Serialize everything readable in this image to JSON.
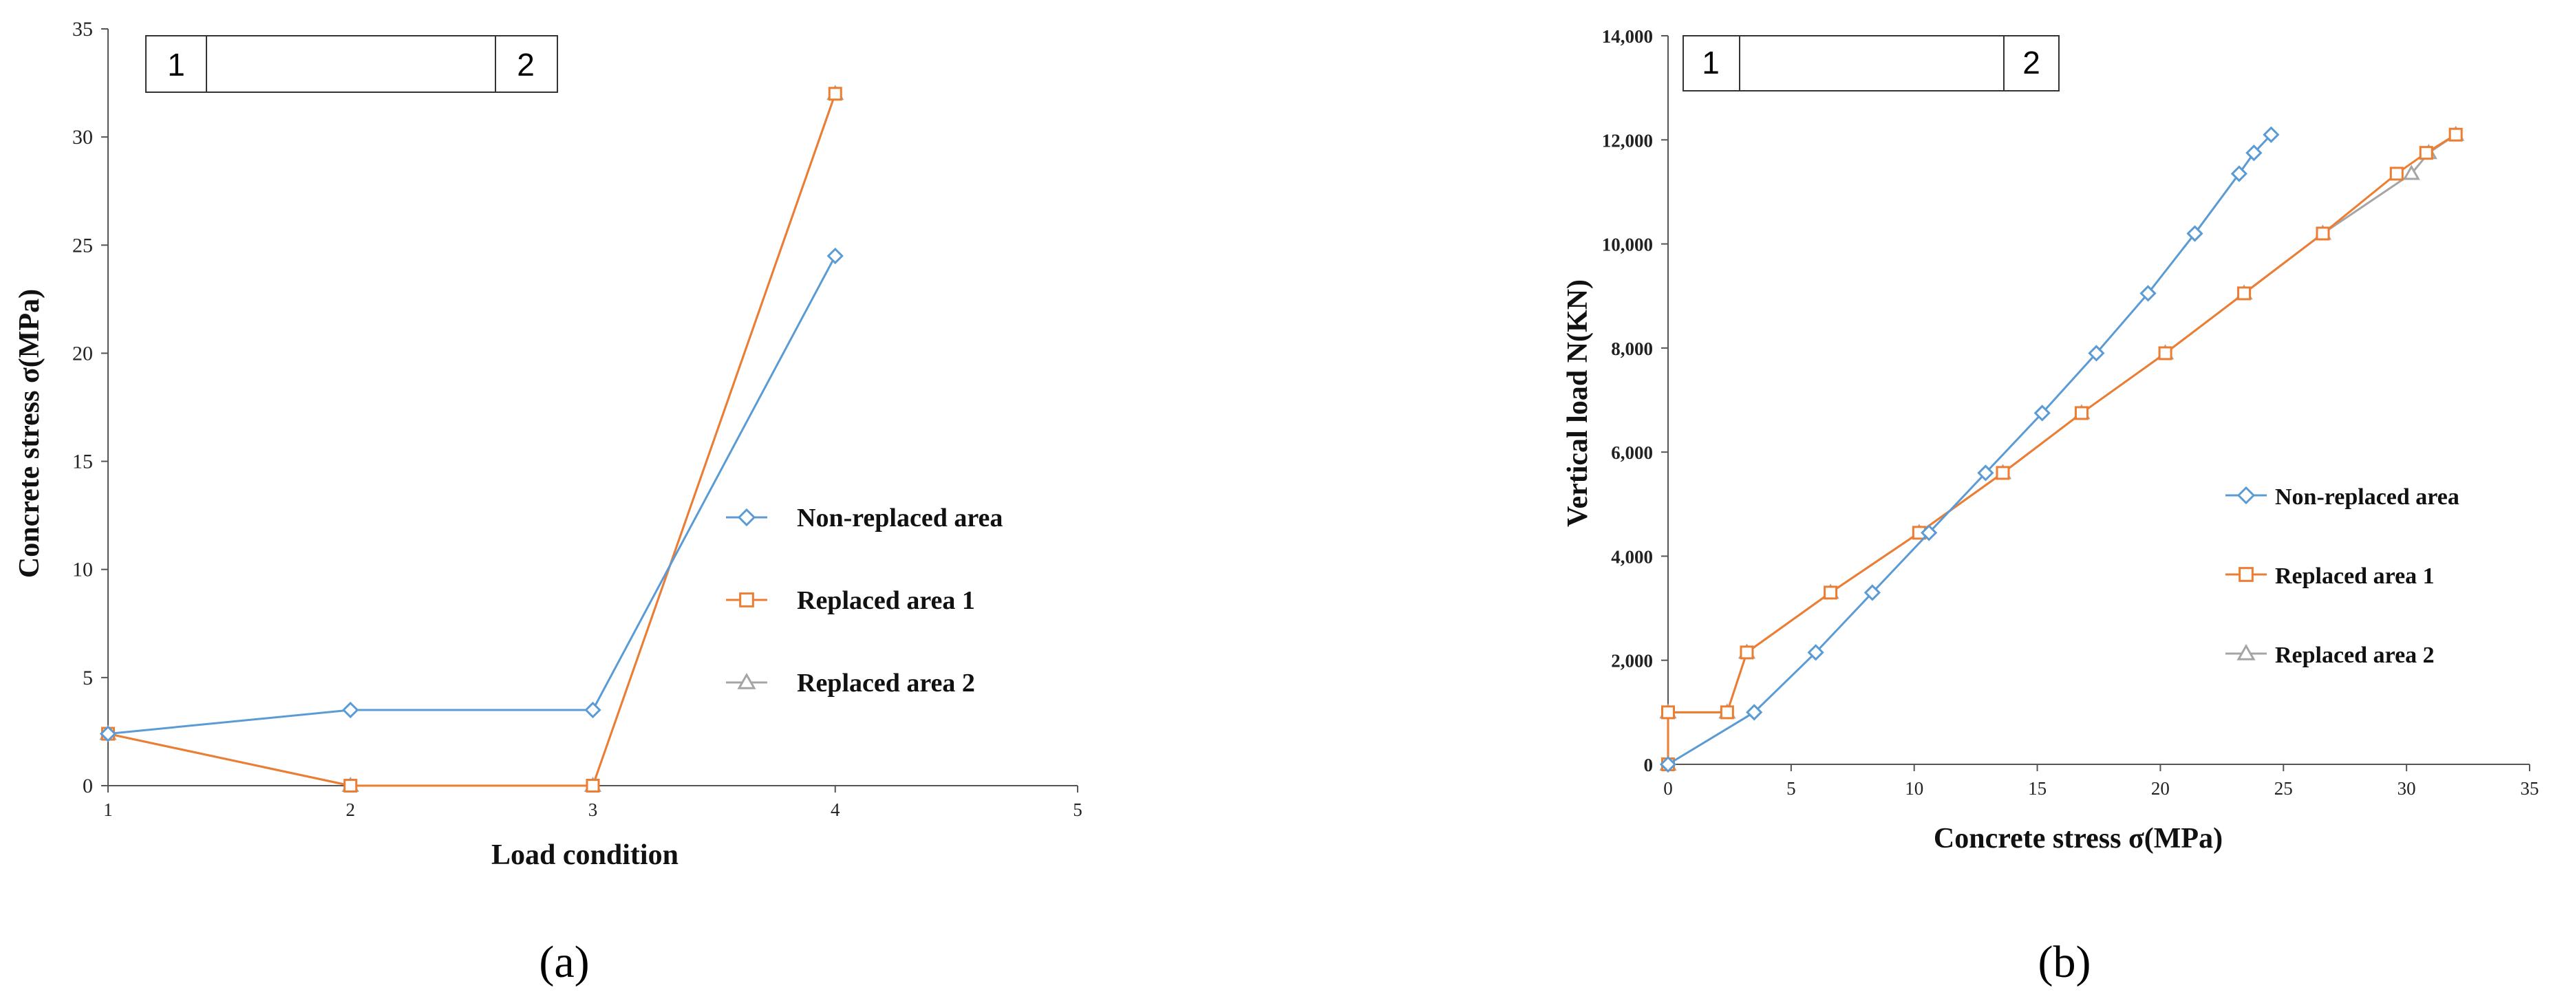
{
  "colors": {
    "non_replaced": "#5b9bd5",
    "replaced_1": "#ed7d31",
    "replaced_2": "#a5a5a5"
  },
  "chart_data": [
    {
      "type": "line",
      "panel_label": "(a)",
      "xlabel": "Load condition",
      "ylabel": "Concrete stress σ(MPa)",
      "xlim": [
        1,
        5
      ],
      "ylim": [
        0,
        35
      ],
      "xticks": [
        1,
        2,
        3,
        4,
        5
      ],
      "yticks": [
        0,
        5,
        10,
        15,
        20,
        25,
        30,
        35
      ],
      "ytick_labels": [
        "0",
        "5",
        "10",
        "15",
        "20",
        "25",
        "30",
        "35"
      ],
      "inset_labels": [
        "1",
        "2"
      ],
      "legend_position": "right",
      "series": [
        {
          "name": "Non-replaced area",
          "marker": "diamond",
          "x": [
            1,
            2,
            3,
            4
          ],
          "y": [
            2.4,
            3.5,
            3.5,
            24.5
          ]
        },
        {
          "name": "Replaced area 1",
          "marker": "square",
          "x": [
            1,
            2,
            3,
            4
          ],
          "y": [
            2.4,
            0,
            0,
            32
          ]
        },
        {
          "name": "Replaced area 2",
          "marker": "triangle",
          "x": [
            1,
            2,
            3,
            4
          ],
          "y": [
            2.4,
            0,
            0,
            32
          ]
        }
      ]
    },
    {
      "type": "line",
      "panel_label": "(b)",
      "xlabel": "Concrete stress σ(MPa)",
      "ylabel": "Vertical load N(KN)",
      "xlim": [
        0,
        35
      ],
      "ylim": [
        0,
        14000
      ],
      "xticks": [
        0,
        5,
        10,
        15,
        20,
        25,
        30,
        35
      ],
      "yticks": [
        0,
        2000,
        4000,
        6000,
        8000,
        10000,
        12000,
        14000
      ],
      "ytick_labels": [
        "0",
        "2,000",
        "4,000",
        "6,000",
        "8,000",
        "10,000",
        "12,000",
        "14,000"
      ],
      "inset_labels": [
        "1",
        "2"
      ],
      "legend_position": "right",
      "series": [
        {
          "name": "Non-replaced area",
          "marker": "diamond",
          "x": [
            0,
            3.5,
            6.0,
            8.3,
            10.6,
            12.9,
            15.2,
            17.4,
            19.5,
            21.4,
            23.2,
            23.8,
            24.5
          ],
          "y": [
            0,
            1000,
            2150,
            3300,
            4450,
            5600,
            6750,
            7900,
            9050,
            10200,
            11350,
            11750,
            12100
          ]
        },
        {
          "name": "Replaced area 1",
          "marker": "square",
          "x": [
            0,
            0,
            2.4,
            3.2,
            6.6,
            10.2,
            13.6,
            16.8,
            20.2,
            23.4,
            26.6,
            29.6,
            30.8,
            32
          ],
          "y": [
            0,
            1000,
            1000,
            2150,
            3300,
            4450,
            5600,
            6750,
            7900,
            9050,
            10200,
            11350,
            11750,
            12100
          ]
        },
        {
          "name": "Replaced area 2",
          "marker": "triangle",
          "x": [
            0,
            0,
            2.4,
            3.2,
            6.6,
            10.2,
            13.6,
            16.8,
            20.2,
            23.4,
            26.6,
            30.2,
            30.9,
            32
          ],
          "y": [
            0,
            1000,
            1000,
            2150,
            3300,
            4450,
            5600,
            6750,
            7900,
            9050,
            10200,
            11350,
            11750,
            12100
          ]
        }
      ]
    }
  ]
}
